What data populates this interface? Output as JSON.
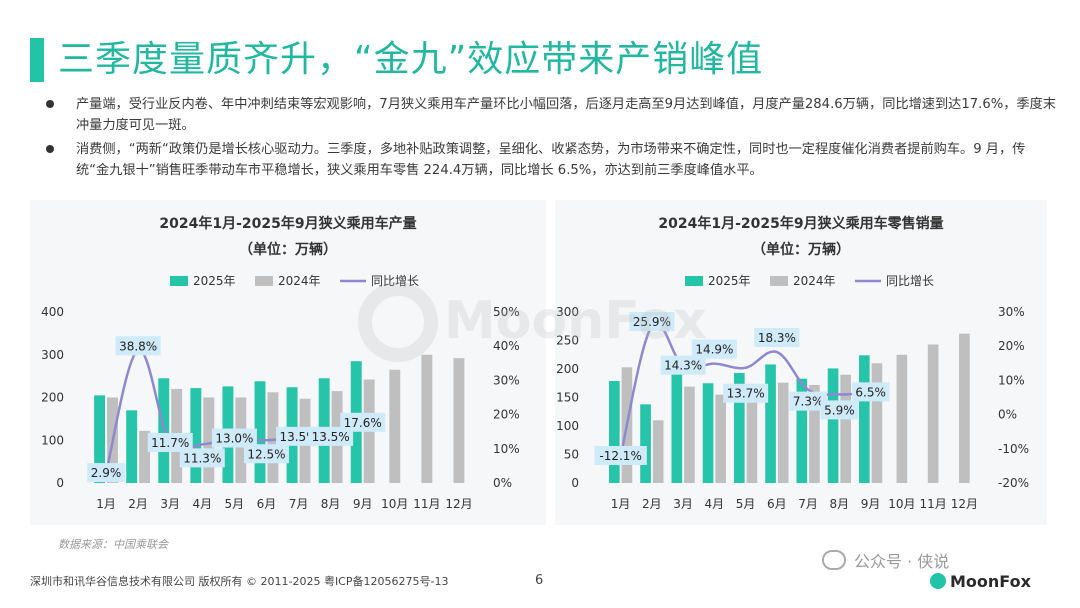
{
  "page": {
    "title": "三季度量质齐升，“金九”效应带来产销峰值",
    "bullets": [
      "产量端，受行业反内卷、年中冲刺结束等宏观影响，7月狭义乘用车产量环比小幅回落，后逐月走高至9月达到峰值，月度产量284.6万辆，同比增速到达17.6%，季度末冲量力度可见一斑。",
      "消费侧，“两新“政策仍是增长核心驱动力。三季度，多地补贴政策调整，呈细化、收紧态势，为市场带来不确定性，同时也一定程度催化消费者提前购车。9 月，传统“金九银十”销售旺季带动车市平稳增长，狭义乘用车零售 224.4万辆，同比增长 6.5%，亦达到前三季度峰值水平。"
    ],
    "source": "数据来源：中国乘联会",
    "footer_left": "深圳市和讯华谷信息技术有限公司 版权所有 © 2011-2025 粤ICP备12056275号-13",
    "page_number": "6",
    "wechat_label": "公众号 · 侠说",
    "logo_text": "MoonFox",
    "watermark": "MoonFox"
  },
  "colors": {
    "accent": "#22c3a6",
    "bar_2025": "#26c4a8",
    "bar_2024": "#bfbfbf",
    "line": "#8f87d2",
    "label_bg": "#cfeaf8"
  },
  "chart_data": [
    {
      "type": "bar",
      "title": "2024年1月-2025年9月狭义乘用车产量",
      "subtitle": "（单位：万辆）",
      "categories": [
        "1月",
        "2月",
        "3月",
        "4月",
        "5月",
        "6月",
        "7月",
        "8月",
        "9月",
        "10月",
        "11月",
        "12月"
      ],
      "series": [
        {
          "name": "2025年",
          "kind": "bar",
          "values": [
            205,
            170,
            245,
            222,
            226,
            238,
            224,
            245,
            285,
            null,
            null,
            null
          ]
        },
        {
          "name": "2024年",
          "kind": "bar",
          "values": [
            200,
            122,
            220,
            200,
            200,
            212,
            197,
            215,
            242,
            265,
            300,
            292
          ]
        },
        {
          "name": "同比增长",
          "kind": "line",
          "axis": "right",
          "values": [
            2.9,
            38.8,
            11.7,
            11.3,
            13.0,
            12.5,
            13.5,
            13.5,
            17.6,
            null,
            null,
            null
          ]
        }
      ],
      "data_labels": [
        "2.9%",
        "38.8%",
        "11.7%",
        "11.3%",
        "13.0%",
        "12.5%",
        "13.5%",
        "13.5%",
        "17.6%"
      ],
      "ylim": [
        0,
        400
      ],
      "yticks": [
        "0",
        "100",
        "200",
        "300",
        "400"
      ],
      "y2lim": [
        0,
        50
      ],
      "y2ticks": [
        "0%",
        "10%",
        "20%",
        "30%",
        "40%",
        "50%"
      ],
      "legend": "top"
    },
    {
      "type": "bar",
      "title": "2024年1月-2025年9月狭义乘用车零售销量",
      "subtitle": "（单位：万辆）",
      "categories": [
        "1月",
        "2月",
        "3月",
        "4月",
        "5月",
        "6月",
        "7月",
        "8月",
        "9月",
        "10月",
        "11月",
        "12月"
      ],
      "series": [
        {
          "name": "2025年",
          "kind": "bar",
          "values": [
            179,
            138,
            194,
            175,
            193,
            208,
            183,
            201,
            224,
            null,
            null,
            null
          ]
        },
        {
          "name": "2024年",
          "kind": "bar",
          "values": [
            203,
            110,
            169,
            155,
            172,
            176,
            172,
            190,
            210,
            225,
            243,
            262
          ]
        },
        {
          "name": "同比增长",
          "kind": "line",
          "axis": "right",
          "values": [
            -12.1,
            25.9,
            14.3,
            14.9,
            13.7,
            18.3,
            7.3,
            5.9,
            6.5,
            null,
            null,
            null
          ]
        }
      ],
      "data_labels": [
        "-12.1%",
        "25.9%",
        "14.3%",
        "14.9%",
        "13.7%",
        "18.3%",
        "7.3%",
        "5.9%",
        "6.5%"
      ],
      "ylim": [
        0,
        300
      ],
      "yticks": [
        "0",
        "50",
        "100",
        "150",
        "200",
        "250",
        "300"
      ],
      "y2lim": [
        -20,
        30
      ],
      "y2ticks": [
        "-20%",
        "-10%",
        "0%",
        "10%",
        "20%",
        "30%"
      ],
      "legend": "top"
    }
  ]
}
